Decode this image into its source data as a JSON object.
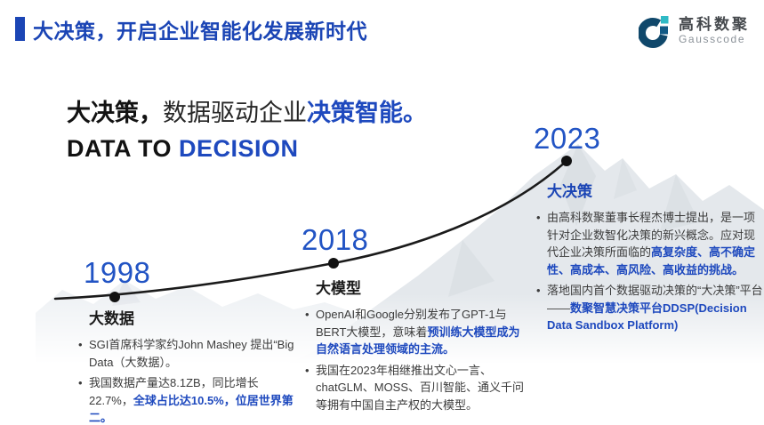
{
  "slide": {
    "header": {
      "title": "大决策，开启企业智能化发展新时代"
    },
    "logo": {
      "brand_cn": "高科数聚",
      "brand_en": "Gausscode"
    },
    "hero": {
      "title_segments": [
        {
          "text": "大决策，",
          "style": "bold-dark"
        },
        {
          "text": "数据驱动企业",
          "style": "dark"
        },
        {
          "text": "决策智能。",
          "style": "bold-blue"
        }
      ],
      "subtitle_segments": [
        {
          "text": "DATA TO ",
          "style": "bold-dark"
        },
        {
          "text": "DECISION",
          "style": "bold-blue"
        }
      ]
    },
    "timeline": {
      "milestones": [
        {
          "year": "1998",
          "title": "大数据",
          "bullets": [
            [
              {
                "text": "SGI首席科学家约John Mashey 提出“Big Data（大数据）。",
                "style": "plain"
              }
            ],
            [
              {
                "text": "我国数据产量达8.1ZB，同比增长22.7%，",
                "style": "plain"
              },
              {
                "text": "全球占比达10.5%，位居世界第二。",
                "style": "bold-blue"
              }
            ]
          ]
        },
        {
          "year": "2018",
          "title": "大模型",
          "bullets": [
            [
              {
                "text": "OpenAI和Google分别发布了GPT-1与BERT大模型，意味着",
                "style": "plain"
              },
              {
                "text": "预训练大模型成为自然语言处理领域的主流。",
                "style": "bold-blue"
              }
            ],
            [
              {
                "text": "我国在2023年相继推出文心一言、chatGLM、MOSS、百川智能、通义千问等拥有中国自主产权的大模型。",
                "style": "plain"
              }
            ]
          ]
        },
        {
          "year": "2023",
          "title": "大决策",
          "bullets": [
            [
              {
                "text": "由高科数聚董事长程杰博士提出，是一项针对企业数智化决策的新兴概念。应对现代企业决策所面临的",
                "style": "plain"
              },
              {
                "text": "高复杂度、高不确定性、高成本、高风险、高收益的挑战。",
                "style": "bold-blue"
              }
            ],
            [
              {
                "text": "落地国内首个数据驱动决策的“大决策”平台——",
                "style": "plain"
              },
              {
                "text": "数聚智慧决策平台DDSP(Decision Data Sandbox Platform)",
                "style": "bold-blue"
              }
            ]
          ]
        }
      ]
    },
    "colors": {
      "accent_blue": "#1b45b5",
      "year_blue": "#2254c4",
      "inline_blue": "#1e49be",
      "text_dark": "#3c3c3c",
      "curve_black": "#1b1b1b",
      "logo_navy": "#10486b",
      "logo_teal": "#2fbac5"
    }
  }
}
